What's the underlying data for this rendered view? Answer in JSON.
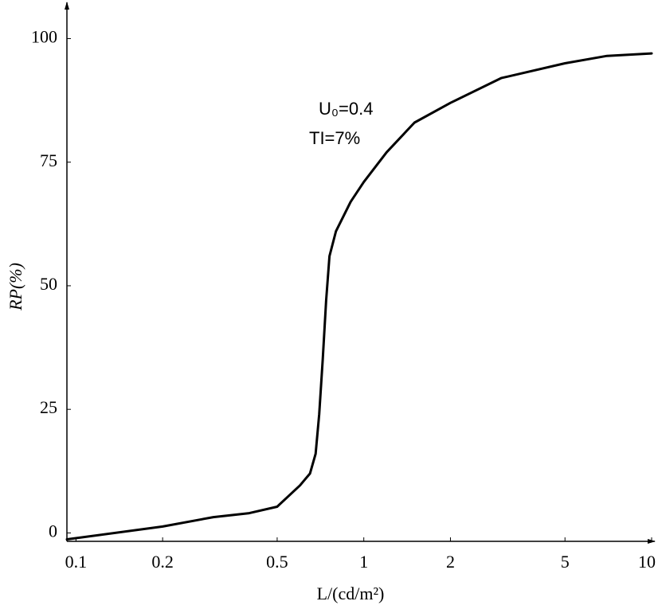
{
  "chart_data": {
    "type": "line",
    "ylabel": "RP(%)",
    "xlabel": "L/(cd/m²)",
    "annotations": [
      "U₀=0.4",
      "TI=7%"
    ],
    "x": [
      0.093,
      0.2,
      0.3,
      0.4,
      0.5,
      0.6,
      0.65,
      0.68,
      0.7,
      0.72,
      0.74,
      0.76,
      0.8,
      0.9,
      1,
      1.2,
      1.5,
      2,
      3,
      5,
      7,
      10
    ],
    "values": [
      -1.3,
      1.3,
      3.2,
      4,
      5.3,
      9.6,
      12,
      16,
      24,
      35,
      47,
      56,
      61,
      67,
      71,
      77,
      83,
      87,
      92,
      95,
      96.5,
      97
    ],
    "color": "#000000",
    "xscale": "log",
    "xlim": [
      0.093,
      10
    ],
    "ylim": [
      -1.7,
      107
    ],
    "xticks": [
      0.1,
      0.2,
      0.5,
      1,
      2,
      5,
      10
    ],
    "yticks": [
      0,
      25,
      50,
      75,
      100
    ],
    "grid": false
  }
}
